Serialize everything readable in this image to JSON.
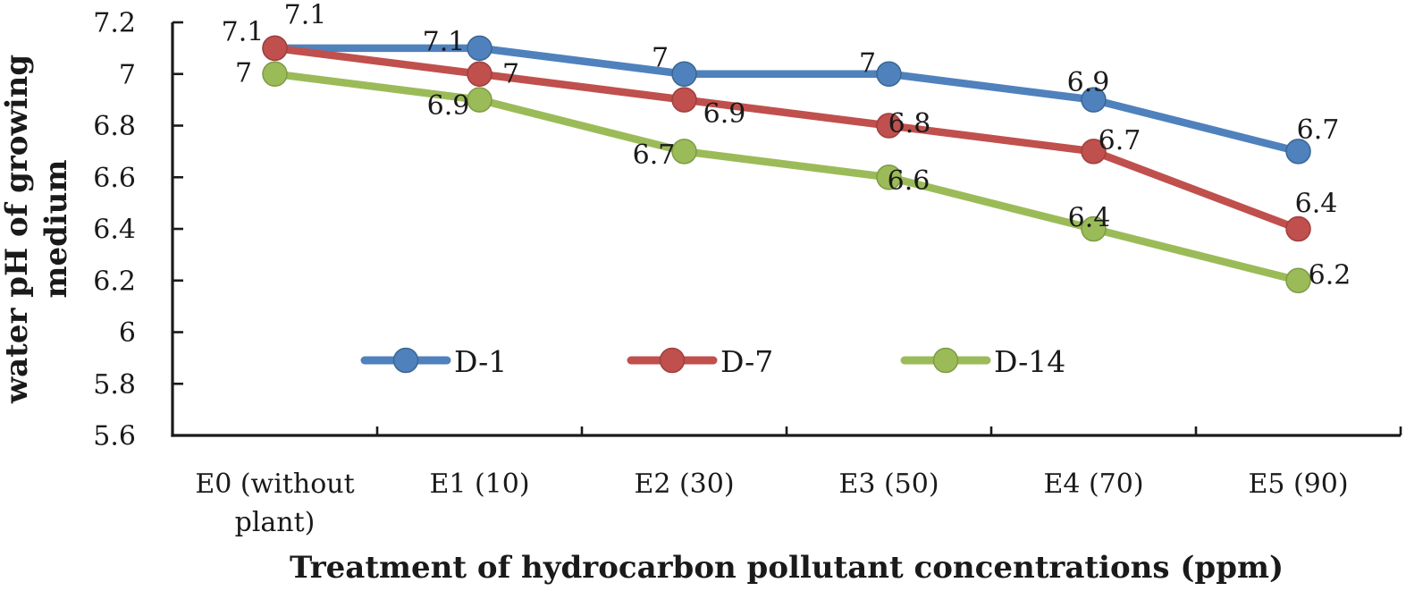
{
  "chart_data": {
    "type": "line",
    "title": "",
    "xlabel": "Treatment of hydrocarbon pollutant concentrations (ppm)",
    "ylabel": "water pH of growing medium",
    "ylabel_lines": [
      "water pH of growing",
      "medium"
    ],
    "categories": [
      "E0 (without plant)",
      "E1 (10)",
      "E2 (30)",
      "E3 (50)",
      "E4 (70)",
      "E5 (90)"
    ],
    "categories_lines": [
      [
        "E0 (without",
        "plant)"
      ],
      [
        "E1 (10)"
      ],
      [
        "E2 (30)"
      ],
      [
        "E3 (50)"
      ],
      [
        "E4 (70)"
      ],
      [
        "E5 (90)"
      ]
    ],
    "ylim": [
      5.6,
      7.2
    ],
    "yticks": [
      7.2,
      7,
      6.8,
      6.6,
      6.4,
      6.2,
      6,
      5.8,
      5.6
    ],
    "grid": false,
    "legend_position": "bottom-inside",
    "background_color": "#ffffff",
    "axis_color": "#1a1a1a",
    "text_color": "#1a1a1a",
    "series": [
      {
        "name": "D-1",
        "color": "#4F81BD",
        "marker_stroke": "#3A6791",
        "values": [
          7.1,
          7.1,
          7.0,
          7.0,
          6.9,
          6.7
        ],
        "label_offsets": [
          [
            34,
            -38
          ],
          [
            -40,
            -8
          ],
          [
            -27,
            -19
          ],
          [
            -24,
            -13
          ],
          [
            -6,
            -20
          ],
          [
            22,
            -25
          ]
        ]
      },
      {
        "name": "D-7",
        "color": "#C0504D",
        "marker_stroke": "#9E3F3D",
        "values": [
          7.1,
          7.0,
          6.9,
          6.8,
          6.7,
          6.4
        ],
        "label_offsets": [
          [
            -36,
            -19
          ],
          [
            35,
            -1
          ],
          [
            45,
            15
          ],
          [
            23,
            -3
          ],
          [
            29,
            -13
          ],
          [
            20,
            -29
          ]
        ]
      },
      {
        "name": "D-14",
        "color": "#9BBB59",
        "marker_stroke": "#7E9B44",
        "values": [
          7.0,
          6.9,
          6.7,
          6.6,
          6.4,
          6.2
        ],
        "label_offsets": [
          [
            -35,
            -2
          ],
          [
            -35,
            6
          ],
          [
            -34,
            3
          ],
          [
            22,
            3
          ],
          [
            -5,
            -13
          ],
          [
            35,
            -7
          ]
        ]
      }
    ]
  }
}
